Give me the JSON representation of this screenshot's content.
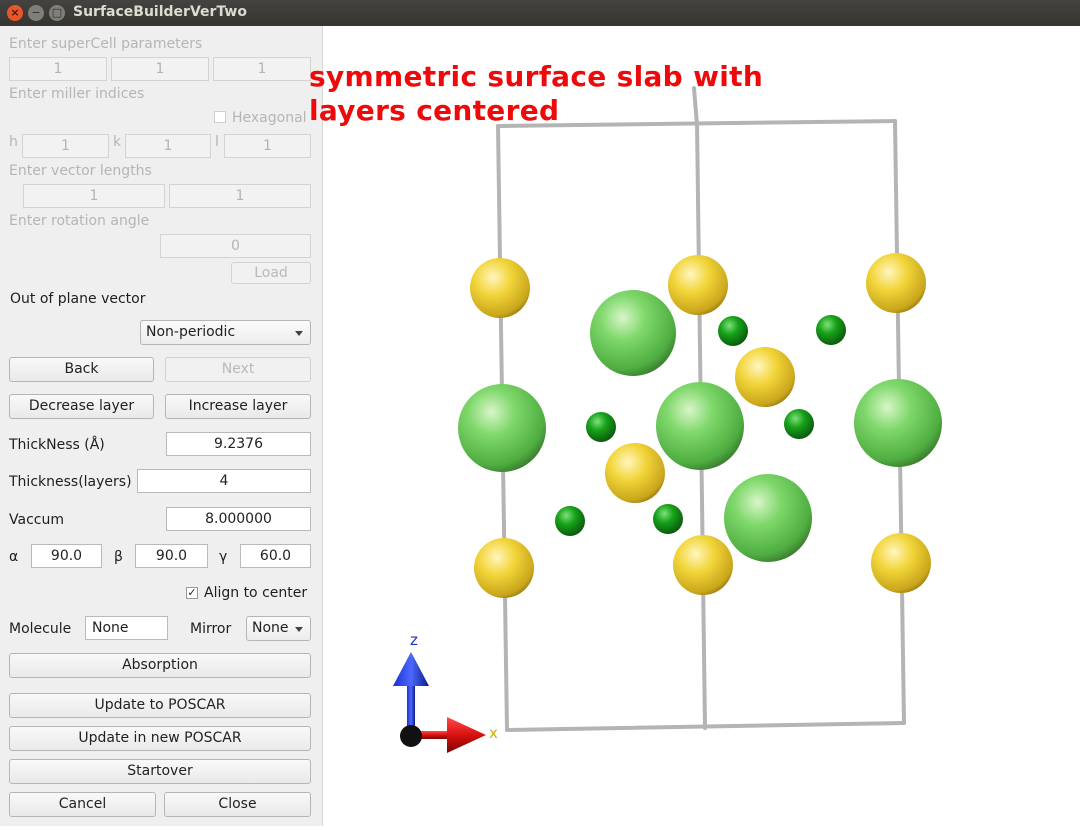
{
  "window": {
    "title": "SurfaceBuilderVerTwo",
    "close_glyph": "×",
    "min_glyph": "−",
    "max_glyph": "□"
  },
  "supercell": {
    "label": "Enter superCell parameters",
    "values": [
      "1",
      "1",
      "1"
    ]
  },
  "miller": {
    "label": "Enter miller indices",
    "hexagonal_label": "Hexagonal",
    "hexagonal_checked": false,
    "h_label": "h",
    "k_label": "k",
    "l_label": "l",
    "h": "1",
    "k": "1",
    "l": "1"
  },
  "vector": {
    "label": "Enter vector lengths",
    "values": [
      "1",
      "1"
    ]
  },
  "rotation": {
    "label": "Enter rotation angle",
    "value": "0",
    "load_label": "Load"
  },
  "out_of_plane": {
    "label": "Out of plane vector",
    "selected": "Non-periodic"
  },
  "nav": {
    "back_label": "Back",
    "next_label": "Next"
  },
  "layer": {
    "decrease_label": "Decrease layer",
    "increase_label": "Increase layer"
  },
  "thickness": {
    "angstrom_label": "ThickNess (Å)",
    "angstrom_value": "9.2376",
    "layers_label": "Thickness(layers)",
    "layers_value": "4"
  },
  "vacuum": {
    "label": "Vaccum",
    "value": "8.000000"
  },
  "angles": {
    "alpha_label": "α",
    "alpha": "90.0",
    "beta_label": "β",
    "beta": "90.0",
    "gamma_label": "γ",
    "gamma": "60.0"
  },
  "align": {
    "label": "Align to center",
    "checked": true,
    "check_glyph": "✓"
  },
  "molecule": {
    "label": "Molecule",
    "value": "None",
    "mirror_label": "Mirror",
    "mirror_value": "None"
  },
  "actions": {
    "absorption_label": "Absorption",
    "update_poscar_label": "Update to POSCAR",
    "update_new_poscar_label": "Update in new POSCAR",
    "startover_label": "Startover",
    "cancel_label": "Cancel",
    "close_label": "Close"
  },
  "viewer": {
    "annotation": "symmetric surface slab with layers centered",
    "axis_z_label": "z",
    "axis_x_label": "x",
    "colors": {
      "large_green": "#6fcf5f",
      "small_green": "#0f8a12",
      "yellow": "#f2d53a",
      "cell_edge": "#b4b4b4",
      "annotation": "#ee0a0a"
    }
  }
}
